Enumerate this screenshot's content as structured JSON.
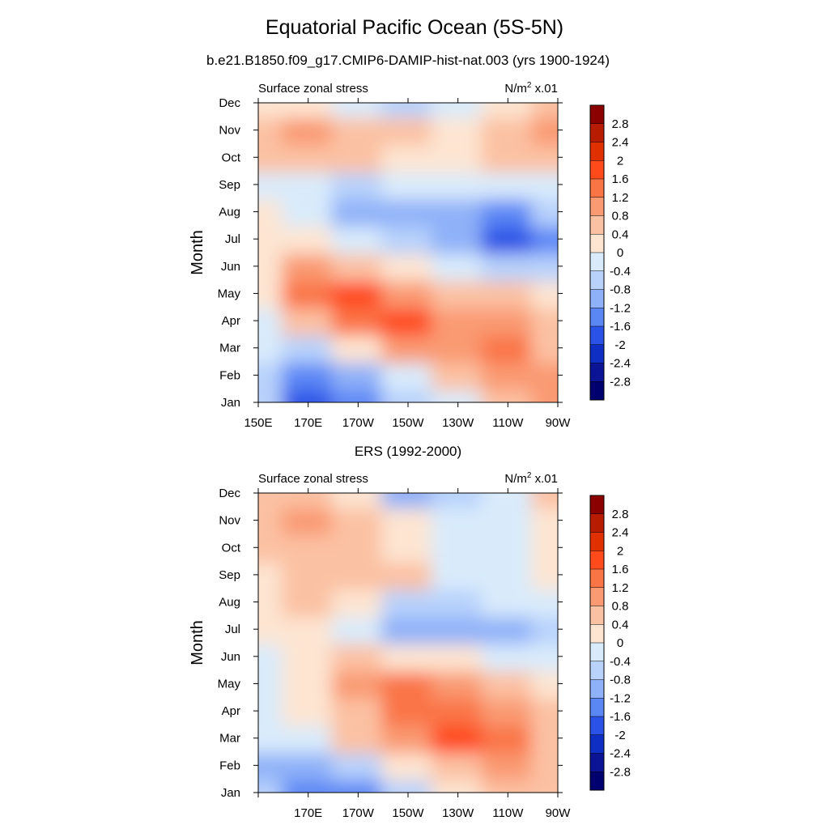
{
  "title": "Equatorial Pacific Ocean (5S-5N)",
  "subtitle": "b.e21.B1850.f09_g17.CMIP6-DAMIP-hist-nat.003 (yrs 1900-1924)",
  "colorbar": {
    "levels": [
      -2.8,
      -2.4,
      -2,
      -1.6,
      -1.2,
      -0.8,
      -0.4,
      0,
      0.4,
      0.8,
      1.2,
      1.6,
      2,
      2.4,
      2.8
    ],
    "labels": [
      "2.8",
      "2.4",
      "2",
      "1.6",
      "1.2",
      "0.8",
      "0.4",
      "0",
      "-0.4",
      "-0.8",
      "-1.2",
      "-1.6",
      "-2",
      "-2.4",
      "-2.8"
    ],
    "colors_top_to_bottom": [
      "#8b0000",
      "#b71c00",
      "#e03000",
      "#ff4a1c",
      "#fa7546",
      "#f99a72",
      "#fbc1a3",
      "#fde5d2",
      "#d9ebfb",
      "#b8d2fb",
      "#8fb1f8",
      "#5b87f5",
      "#2a52e6",
      "#0f2ec4",
      "#0a1494",
      "#00006e"
    ]
  },
  "chart_data": [
    {
      "type": "heatmap",
      "panel_title": "",
      "left_label": "Surface zonal stress",
      "right_label": "N/m",
      "right_label_sup": "2",
      "right_label_suffix": " x.01",
      "ylabel": "Month",
      "x_tick_labels": [
        "150E",
        "170E",
        "170W",
        "150W",
        "130W",
        "110W",
        "90W"
      ],
      "y_tick_labels": [
        "Jan",
        "Feb",
        "Mar",
        "Apr",
        "May",
        "Jun",
        "Jul",
        "Aug",
        "Sep",
        "Oct",
        "Nov",
        "Dec"
      ],
      "x_columns": [
        "150E",
        "170E",
        "170W",
        "150W",
        "130W",
        "110W",
        "90W"
      ],
      "values": [
        [
          -0.8,
          -1.8,
          -1.6,
          -0.8,
          -0.2,
          0.6,
          0.8
        ],
        [
          -0.6,
          -1.4,
          -1.0,
          -0.2,
          0.6,
          1.0,
          0.8
        ],
        [
          -0.4,
          -0.6,
          0.2,
          0.8,
          1.0,
          1.2,
          0.6
        ],
        [
          -0.2,
          0.4,
          1.2,
          1.6,
          1.0,
          0.8,
          0.4
        ],
        [
          0.2,
          1.4,
          1.8,
          1.0,
          0.6,
          0.4,
          0.2
        ],
        [
          0.2,
          0.8,
          0.6,
          0.2,
          -0.2,
          -0.8,
          -0.6
        ],
        [
          0.0,
          0.2,
          -0.2,
          -0.6,
          -1.2,
          -2.0,
          -1.4
        ],
        [
          0.0,
          -0.4,
          -1.0,
          -1.0,
          -1.2,
          -1.4,
          -0.8
        ],
        [
          -0.2,
          -0.4,
          -0.6,
          -0.4,
          -0.4,
          -0.4,
          -0.2
        ],
        [
          0.4,
          0.6,
          0.4,
          0.2,
          0.2,
          0.4,
          0.6
        ],
        [
          0.6,
          0.8,
          0.6,
          0.4,
          0.2,
          0.6,
          0.8
        ],
        [
          0.2,
          0.2,
          -0.4,
          -0.6,
          -0.2,
          0.2,
          0.4
        ]
      ]
    },
    {
      "type": "heatmap",
      "panel_title": "ERS (1992-2000)",
      "left_label": "Surface zonal stress",
      "right_label": "N/m",
      "right_label_sup": "2",
      "right_label_suffix": " x.01",
      "ylabel": "Month",
      "x_tick_labels": [
        "",
        "170E",
        "170W",
        "150W",
        "130W",
        "110W",
        "90W"
      ],
      "y_tick_labels": [
        "Jan",
        "Feb",
        "Mar",
        "Apr",
        "May",
        "Jun",
        "Jul",
        "Aug",
        "Sep",
        "Oct",
        "Nov",
        "Dec"
      ],
      "x_columns": [
        "150E",
        "170E",
        "170W",
        "150W",
        "130W",
        "110W",
        "90W"
      ],
      "values": [
        [
          -0.8,
          -1.4,
          -1.4,
          -0.6,
          0.2,
          0.4,
          0.4
        ],
        [
          -1.2,
          -1.2,
          -0.8,
          0.0,
          0.6,
          0.8,
          0.4
        ],
        [
          -0.4,
          -0.2,
          0.4,
          1.0,
          1.6,
          1.2,
          0.4
        ],
        [
          -0.2,
          0.0,
          0.6,
          1.4,
          1.2,
          0.8,
          0.4
        ],
        [
          -0.2,
          0.2,
          0.8,
          1.2,
          0.8,
          0.4,
          0.2
        ],
        [
          -0.4,
          0.2,
          0.4,
          0.2,
          0.0,
          -0.2,
          -0.2
        ],
        [
          0.0,
          0.2,
          -0.4,
          -1.2,
          -1.2,
          -1.2,
          -0.6
        ],
        [
          0.2,
          0.4,
          0.0,
          -0.6,
          -0.6,
          -0.4,
          -0.2
        ],
        [
          0.2,
          0.4,
          0.6,
          0.4,
          -0.2,
          -0.4,
          0.0
        ],
        [
          0.4,
          0.6,
          0.4,
          0.2,
          -0.4,
          -0.4,
          0.0
        ],
        [
          0.4,
          0.8,
          0.6,
          0.2,
          -0.2,
          -0.4,
          0.2
        ],
        [
          0.4,
          0.4,
          0.0,
          -1.0,
          -0.8,
          -0.2,
          0.4
        ]
      ]
    }
  ]
}
